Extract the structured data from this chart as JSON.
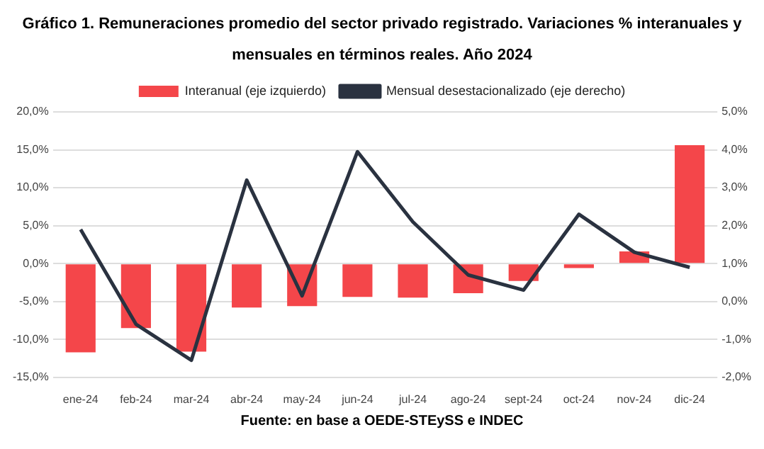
{
  "chart_data": {
    "type": "bar",
    "title": "Gráfico 1. Remuneraciones promedio del sector privado registrado. Variaciones % interanuales y mensuales en términos reales. Año 2024",
    "categories": [
      "ene-24",
      "feb-24",
      "mar-24",
      "abr-24",
      "may-24",
      "jun-24",
      "jul-24",
      "ago-24",
      "sept-24",
      "oct-24",
      "nov-24",
      "dic-24"
    ],
    "series": [
      {
        "name": "Interanual (eje izquierdo)",
        "color": "#f4464a",
        "values": [
          -11.7,
          -8.5,
          -11.6,
          -5.8,
          -5.6,
          -4.4,
          -4.5,
          -3.9,
          -2.3,
          -0.6,
          1.6,
          15.6
        ]
      },
      {
        "name": "Mensual desestacionalizado (eje derecho)",
        "type": "line",
        "axis": "y2",
        "color": "#2a3240",
        "values": [
          1.9,
          -0.6,
          -1.55,
          3.2,
          0.15,
          3.95,
          2.1,
          0.7,
          0.3,
          2.3,
          1.3,
          0.9
        ]
      }
    ],
    "ylim": [
      -15,
      20
    ],
    "yticks": [
      {
        "value": -15,
        "label": "-15,0%"
      },
      {
        "value": -10,
        "label": "-10,0%"
      },
      {
        "value": -5,
        "label": "-5,0%"
      },
      {
        "value": 0,
        "label": "0,0%"
      },
      {
        "value": 5,
        "label": "5,0%"
      },
      {
        "value": 10,
        "label": "10,0%"
      },
      {
        "value": 15,
        "label": "15,0%"
      },
      {
        "value": 20,
        "label": "20,0%"
      }
    ],
    "y2lim": [
      -2,
      5
    ],
    "y2ticks": [
      {
        "value": -2,
        "label": "-2,0%"
      },
      {
        "value": -1,
        "label": "-1,0%"
      },
      {
        "value": 0,
        "label": "0,0%"
      },
      {
        "value": 1,
        "label": "1,0%"
      },
      {
        "value": 2,
        "label": "2,0%"
      },
      {
        "value": 3,
        "label": "3,0%"
      },
      {
        "value": 4,
        "label": "4,0%"
      },
      {
        "value": 5,
        "label": "5,0%"
      }
    ],
    "grid": "y",
    "legend": "top",
    "marker": "none",
    "annotations": [
      "Fuente: en base a OEDE-STEySS e INDEC"
    ]
  }
}
